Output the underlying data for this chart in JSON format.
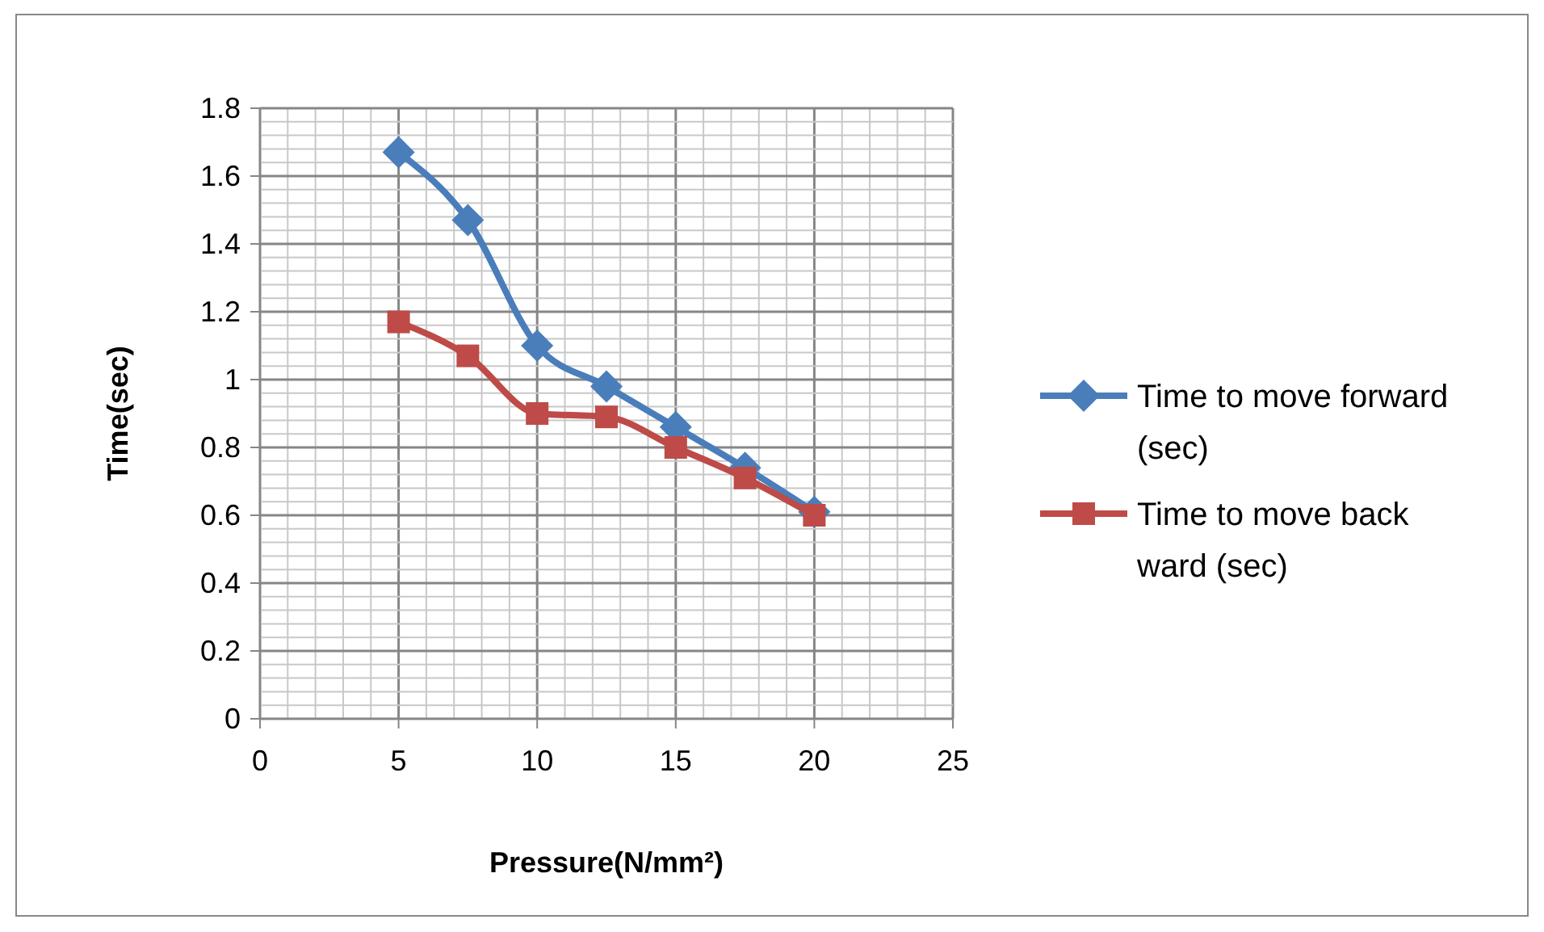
{
  "chart_data": {
    "type": "line",
    "xlabel": "Pressure(N/mm²)",
    "ylabel": "Time(sec)",
    "x": [
      5,
      7.5,
      10,
      12.5,
      15,
      17.5,
      20
    ],
    "series": [
      {
        "name": "Time to move forward (sec)",
        "color": "#4a7ebb",
        "marker": "diamond",
        "values": [
          1.67,
          1.47,
          1.1,
          0.98,
          0.86,
          0.74,
          0.61
        ]
      },
      {
        "name": "Time to move back ward (sec)",
        "color": "#be4b48",
        "marker": "square",
        "values": [
          1.17,
          1.07,
          0.9,
          0.89,
          0.8,
          0.71,
          0.6
        ]
      }
    ],
    "xlim": [
      0,
      25
    ],
    "xticks": [
      0,
      5,
      10,
      15,
      20,
      25
    ],
    "ylim": [
      0,
      1.8
    ],
    "yticks": [
      0,
      0.2,
      0.4,
      0.6,
      0.8,
      1,
      1.2,
      1.4,
      1.6,
      1.8
    ],
    "grid": true,
    "legend": "right"
  }
}
